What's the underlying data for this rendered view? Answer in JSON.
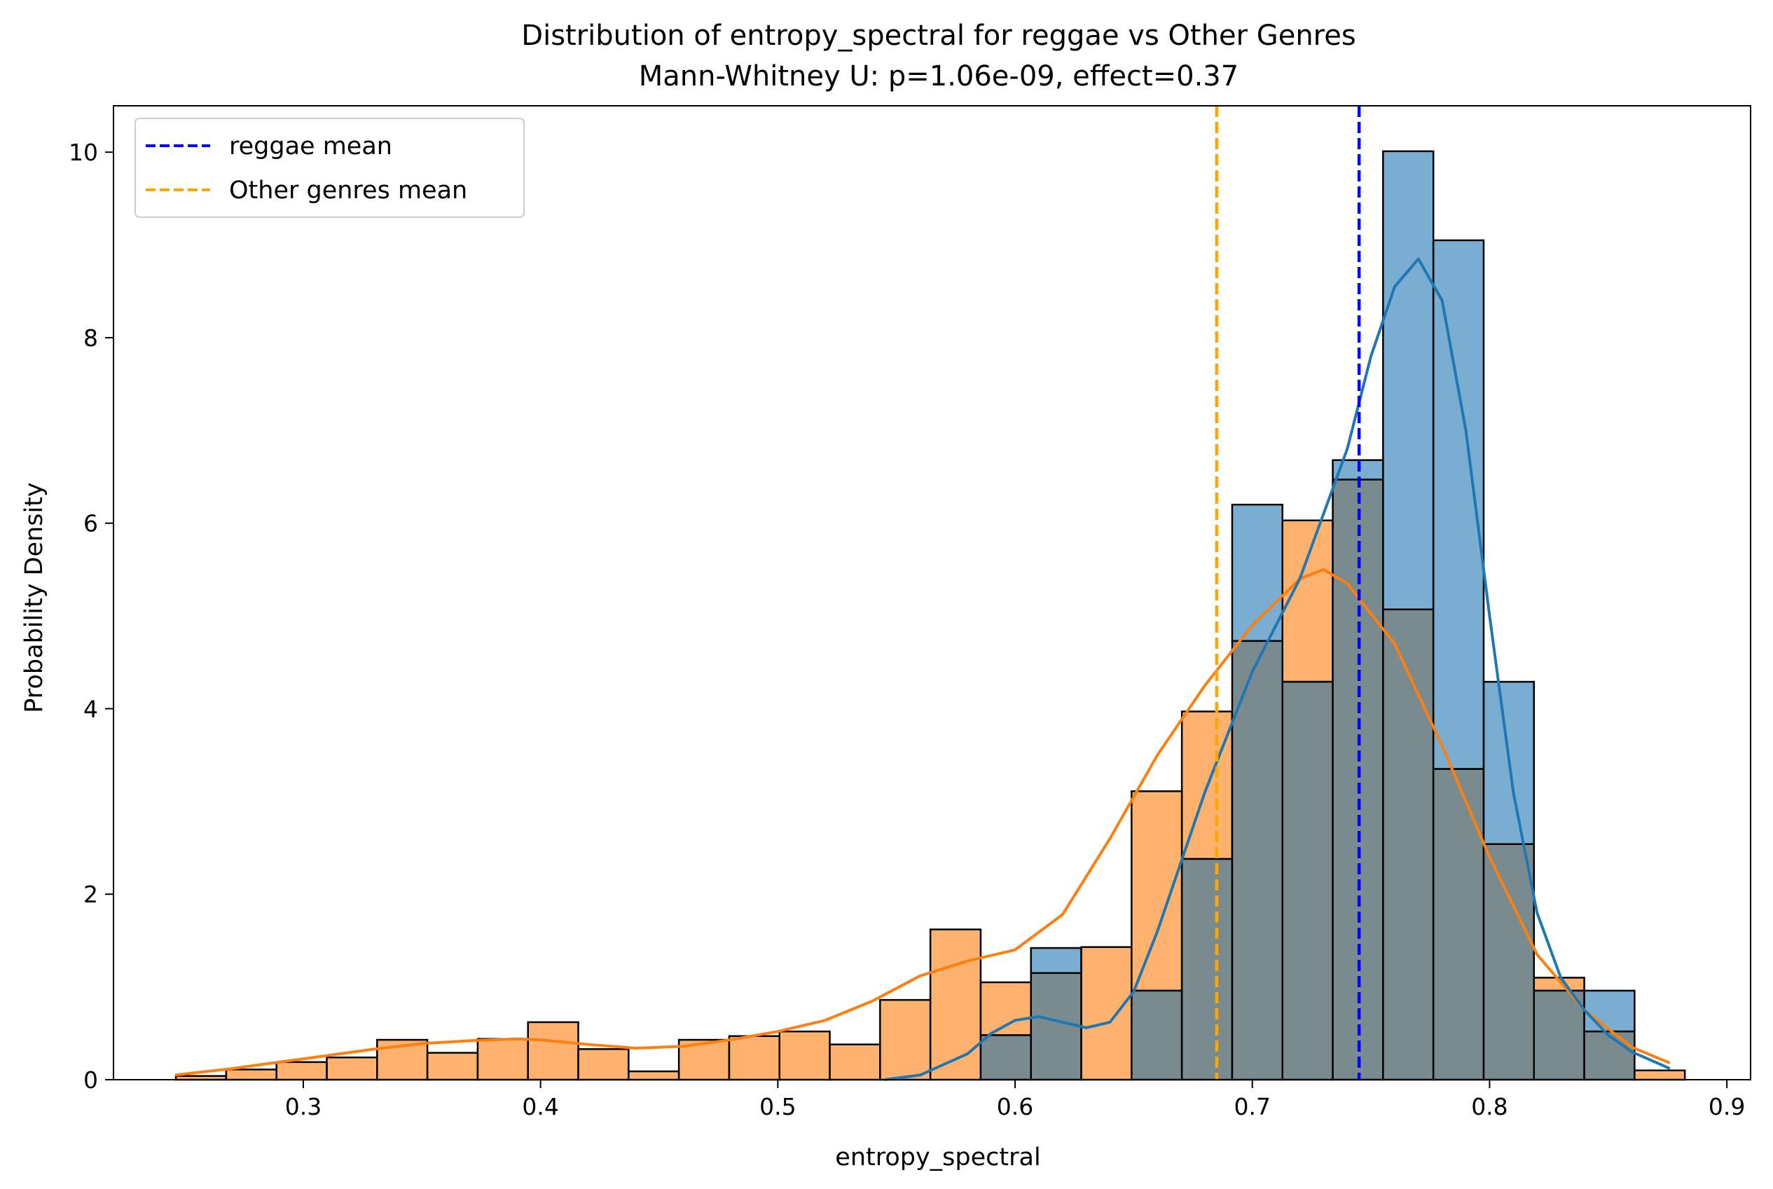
{
  "chart_data": {
    "type": "histogram",
    "title": "Distribution of entropy_spectral for reggae vs Other Genres",
    "subtitle": "Mann-Whitney U: p=1.06e-09, effect=0.37",
    "xlabel": "entropy_spectral",
    "ylabel": "Probability Density",
    "xlim": [
      0.22,
      0.91
    ],
    "ylim": [
      0,
      10.5
    ],
    "xticks": [
      "0.3",
      "0.4",
      "0.5",
      "0.6",
      "0.7",
      "0.8",
      "0.9"
    ],
    "yticks": [
      "0",
      "2",
      "4",
      "6",
      "8",
      "10"
    ],
    "grid": false,
    "legend_position": "upper left",
    "bin_width": 0.0212,
    "series": [
      {
        "name": "",
        "color": "#ff7f0e",
        "bin_starts": [
          0.2463,
          0.2675,
          0.2887,
          0.3099,
          0.3311,
          0.3523,
          0.3735,
          0.3947,
          0.4159,
          0.4371,
          0.4583,
          0.4795,
          0.5007,
          0.5219,
          0.5431,
          0.5643,
          0.5855,
          0.6067,
          0.6279,
          0.6491,
          0.6703,
          0.6915,
          0.7127,
          0.7339,
          0.7551,
          0.7763,
          0.7975,
          0.8187,
          0.8399,
          0.8611
        ],
        "densities": [
          0.04,
          0.11,
          0.19,
          0.24,
          0.43,
          0.29,
          0.44,
          0.62,
          0.33,
          0.09,
          0.43,
          0.47,
          0.52,
          0.38,
          0.86,
          1.62,
          1.05,
          1.15,
          1.43,
          3.11,
          3.97,
          4.73,
          6.03,
          6.47,
          5.07,
          3.35,
          2.54,
          1.1,
          0.52,
          0.1
        ],
        "kde": {
          "x": [
            0.246,
            0.27,
            0.29,
            0.31,
            0.33,
            0.35,
            0.37,
            0.39,
            0.4,
            0.42,
            0.44,
            0.46,
            0.48,
            0.5,
            0.52,
            0.54,
            0.56,
            0.58,
            0.6,
            0.62,
            0.64,
            0.66,
            0.68,
            0.7,
            0.72,
            0.73,
            0.74,
            0.76,
            0.78,
            0.8,
            0.82,
            0.84,
            0.86,
            0.876
          ],
          "y": [
            0.05,
            0.12,
            0.19,
            0.26,
            0.33,
            0.39,
            0.42,
            0.44,
            0.43,
            0.38,
            0.34,
            0.36,
            0.43,
            0.52,
            0.64,
            0.85,
            1.12,
            1.28,
            1.4,
            1.78,
            2.6,
            3.5,
            4.25,
            4.9,
            5.4,
            5.5,
            5.35,
            4.7,
            3.6,
            2.4,
            1.35,
            0.75,
            0.35,
            0.18
          ]
        }
      },
      {
        "name": "",
        "color": "#1f77b4",
        "bin_starts": [
          0.5855,
          0.6067,
          0.6279,
          0.6491,
          0.6703,
          0.6915,
          0.7127,
          0.7339,
          0.7551,
          0.7763,
          0.7975,
          0.8187,
          0.8399
        ],
        "densities": [
          0.48,
          1.42,
          0.0,
          0.96,
          2.38,
          6.2,
          4.29,
          6.68,
          10.01,
          9.05,
          4.29,
          0.96,
          0.96
        ],
        "kde": {
          "x": [
            0.545,
            0.56,
            0.58,
            0.59,
            0.6,
            0.61,
            0.62,
            0.63,
            0.64,
            0.65,
            0.66,
            0.68,
            0.7,
            0.72,
            0.74,
            0.75,
            0.76,
            0.77,
            0.78,
            0.79,
            0.8,
            0.81,
            0.82,
            0.83,
            0.84,
            0.85,
            0.86,
            0.876
          ],
          "y": [
            0.0,
            0.05,
            0.28,
            0.5,
            0.64,
            0.68,
            0.62,
            0.56,
            0.62,
            0.95,
            1.6,
            3.1,
            4.4,
            5.4,
            6.8,
            7.8,
            8.55,
            8.85,
            8.4,
            7.0,
            5.0,
            3.1,
            1.8,
            1.1,
            0.75,
            0.48,
            0.3,
            0.12
          ]
        }
      }
    ],
    "overlap_color": "#7a8b90",
    "mean_lines": [
      {
        "label": "reggae mean",
        "x": 0.745,
        "color": "#0000ff"
      },
      {
        "label": "Other genres mean",
        "x": 0.685,
        "color": "#ffa500"
      }
    ]
  }
}
